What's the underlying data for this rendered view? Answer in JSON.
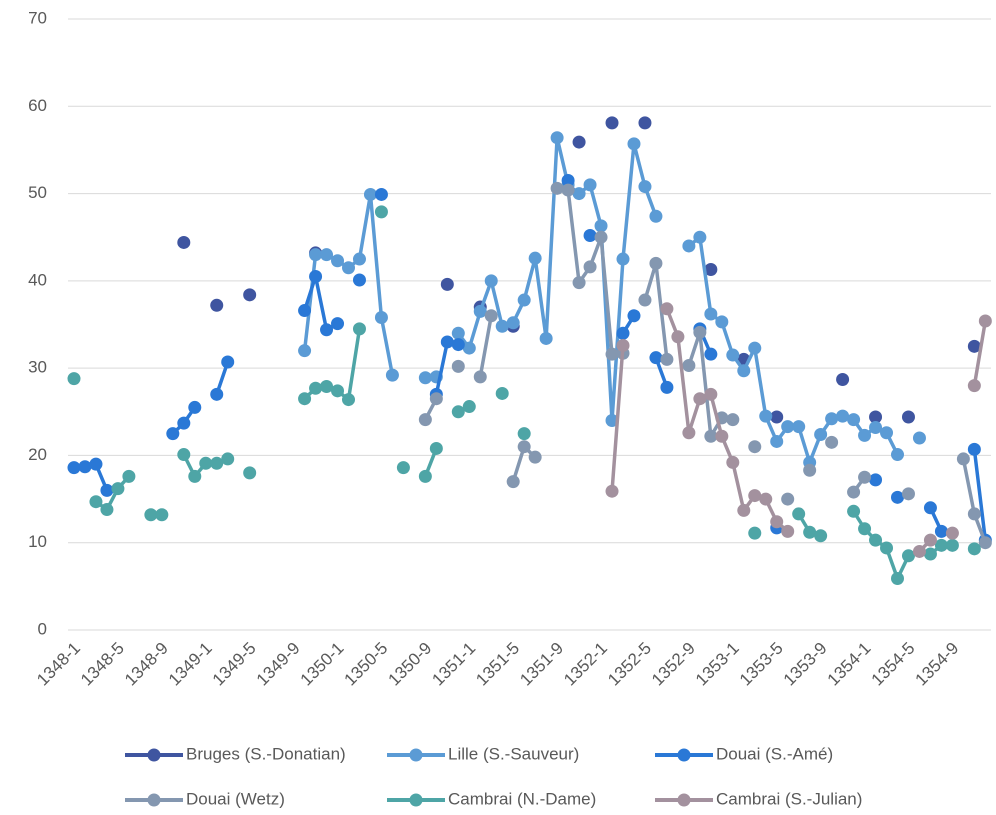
{
  "chart_data": {
    "type": "line",
    "categories": [
      "1348-1",
      null,
      null,
      null,
      "1348-5",
      null,
      null,
      null,
      "1348-9",
      null,
      null,
      null,
      "1349-1",
      null,
      null,
      null,
      "1349-5",
      null,
      null,
      null,
      "1349-9",
      null,
      null,
      null,
      "1350-1",
      null,
      null,
      null,
      "1350-5",
      null,
      null,
      null,
      "1350-9",
      null,
      null,
      null,
      "1351-1",
      null,
      null,
      null,
      "1351-5",
      null,
      null,
      null,
      "1351-9",
      null,
      null,
      null,
      "1352-1",
      null,
      null,
      null,
      "1352-5",
      null,
      null,
      null,
      "1352-9",
      null,
      null,
      null,
      "1353-1",
      null,
      null,
      null,
      "1353-5",
      null,
      null,
      null,
      "1353-9",
      null,
      null,
      null,
      "1354-1",
      null,
      null,
      null,
      "1354-5",
      null,
      null,
      null,
      "1354-9",
      null,
      null,
      null
    ],
    "ylim": [
      0,
      70
    ],
    "yticks": [
      0,
      10,
      20,
      30,
      40,
      50,
      60,
      70
    ],
    "grid": true,
    "legend": "bottom",
    "series": [
      {
        "name": "Bruges (S.-Donatian)",
        "color": "#3f55a0",
        "values": [
          null,
          null,
          null,
          null,
          null,
          null,
          null,
          null,
          null,
          null,
          44.4,
          null,
          null,
          37.2,
          null,
          null,
          38.4,
          null,
          null,
          null,
          null,
          null,
          43.2,
          null,
          null,
          null,
          null,
          null,
          null,
          null,
          null,
          null,
          null,
          null,
          39.6,
          null,
          null,
          37,
          null,
          null,
          34.8,
          null,
          null,
          null,
          null,
          null,
          55.9,
          null,
          null,
          58.1,
          null,
          null,
          58.1,
          null,
          null,
          null,
          null,
          null,
          41.3,
          null,
          null,
          31,
          null,
          null,
          24.4,
          null,
          null,
          null,
          null,
          null,
          28.7,
          null,
          null,
          24.4,
          null,
          null,
          24.4,
          null,
          null,
          null,
          null,
          null,
          32.5,
          null
        ]
      },
      {
        "name": "Lille (S.-Sauveur)",
        "color": "#5b9bd5",
        "values": [
          null,
          null,
          null,
          null,
          null,
          null,
          null,
          null,
          null,
          null,
          null,
          null,
          null,
          null,
          null,
          null,
          null,
          null,
          null,
          null,
          null,
          32,
          43,
          43,
          42.3,
          41.5,
          42.5,
          49.9,
          35.8,
          29.2,
          null,
          null,
          28.9,
          29,
          null,
          34,
          32.3,
          36.5,
          40,
          34.8,
          35.2,
          37.8,
          42.6,
          33.4,
          56.4,
          51,
          50,
          51,
          46.3,
          24,
          42.5,
          55.7,
          50.8,
          47.4,
          null,
          null,
          44,
          45,
          36.2,
          35.3,
          31.5,
          29.7,
          32.3,
          24.5,
          21.6,
          23.3,
          23.3,
          19.2,
          22.4,
          24.2,
          24.5,
          24.1,
          22.3,
          23.2,
          22.6,
          20.1,
          null,
          22,
          null,
          null,
          null,
          null,
          null,
          null
        ]
      },
      {
        "name": "Douai (S.-Amé)",
        "color": "#2a78d6",
        "values": [
          18.6,
          18.7,
          19,
          16,
          null,
          null,
          null,
          null,
          null,
          22.5,
          23.7,
          25.5,
          null,
          27,
          30.7,
          null,
          null,
          null,
          null,
          null,
          null,
          36.6,
          40.5,
          34.4,
          35.1,
          null,
          40.1,
          null,
          49.9,
          null,
          null,
          null,
          null,
          27,
          33,
          32.7,
          null,
          null,
          null,
          null,
          null,
          null,
          null,
          null,
          null,
          51.5,
          null,
          45.2,
          null,
          null,
          34,
          36,
          null,
          31.2,
          27.8,
          null,
          null,
          34.5,
          31.6,
          null,
          null,
          null,
          null,
          null,
          11.7,
          null,
          null,
          null,
          null,
          null,
          null,
          null,
          null,
          17.2,
          null,
          15.2,
          null,
          null,
          14,
          11.3,
          null,
          null,
          20.7,
          10.3
        ]
      },
      {
        "name": "Douai (Wetz)",
        "color": "#8497b0",
        "values": [
          null,
          null,
          null,
          null,
          null,
          null,
          null,
          null,
          null,
          null,
          null,
          null,
          null,
          null,
          null,
          null,
          null,
          null,
          null,
          null,
          null,
          null,
          null,
          null,
          null,
          null,
          null,
          null,
          null,
          null,
          null,
          null,
          24.1,
          26.5,
          null,
          30.2,
          null,
          29,
          36,
          null,
          17,
          21,
          19.8,
          null,
          50.6,
          50.4,
          39.8,
          41.6,
          45,
          31.6,
          31.7,
          null,
          37.8,
          42,
          31,
          null,
          30.3,
          34.1,
          22.2,
          24.3,
          24.1,
          null,
          21,
          null,
          null,
          15,
          null,
          18.3,
          null,
          21.5,
          null,
          15.8,
          17.5,
          null,
          null,
          null,
          15.6,
          null,
          null,
          null,
          null,
          19.6,
          13.3,
          10
        ]
      },
      {
        "name": "Cambrai (N.-Dame)",
        "color": "#4ea5a6",
        "values": [
          28.8,
          null,
          14.7,
          13.8,
          16.2,
          17.6,
          null,
          13.2,
          13.2,
          null,
          20.1,
          17.6,
          19.1,
          19.1,
          19.6,
          null,
          18,
          null,
          null,
          null,
          null,
          26.5,
          27.7,
          27.9,
          27.4,
          26.4,
          34.5,
          null,
          47.9,
          null,
          18.6,
          null,
          17.6,
          20.8,
          null,
          25,
          25.6,
          null,
          null,
          27.1,
          null,
          22.5,
          null,
          null,
          null,
          null,
          null,
          null,
          null,
          null,
          null,
          null,
          null,
          null,
          null,
          null,
          null,
          null,
          null,
          null,
          null,
          null,
          11.1,
          null,
          null,
          null,
          13.3,
          11.2,
          10.8,
          null,
          null,
          13.6,
          11.6,
          10.3,
          9.4,
          5.9,
          8.5,
          null,
          8.7,
          9.7,
          9.7,
          null,
          9.3,
          null
        ]
      },
      {
        "name": "Cambrai (S.-Julian)",
        "color": "#a3919e",
        "values": [
          null,
          null,
          null,
          null,
          null,
          null,
          null,
          null,
          null,
          null,
          null,
          null,
          null,
          null,
          null,
          null,
          null,
          null,
          null,
          null,
          null,
          null,
          null,
          null,
          null,
          null,
          null,
          null,
          null,
          null,
          null,
          null,
          null,
          null,
          null,
          null,
          null,
          null,
          null,
          null,
          null,
          null,
          null,
          null,
          null,
          null,
          null,
          null,
          null,
          15.9,
          32.6,
          null,
          null,
          null,
          36.8,
          33.6,
          22.6,
          26.5,
          27,
          22.2,
          19.2,
          13.7,
          15.4,
          15,
          12.4,
          11.3,
          null,
          null,
          null,
          null,
          null,
          null,
          null,
          null,
          null,
          null,
          null,
          9,
          10.3,
          null,
          11.1,
          null,
          28,
          35.4
        ]
      }
    ]
  }
}
